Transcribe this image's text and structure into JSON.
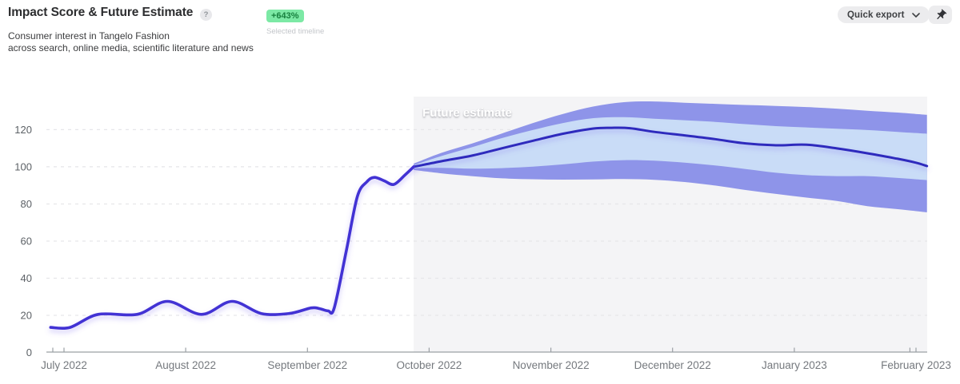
{
  "header": {
    "title": "Impact Score & Future Estimate",
    "help": "?",
    "subtitle_line1": "Consumer interest in Tangelo Fashion",
    "subtitle_line2": "across search, online media, scientific literature and news",
    "badge": "+643%",
    "badge_caption": "Selected timeline",
    "quick_export_label": "Quick export"
  },
  "colors": {
    "line_actual": "#4233d4",
    "line_forecast": "#2e29bd",
    "band_inner": "#c9dcf7",
    "band_outer": "#8e94e9",
    "region_bg": "#f4f4f6",
    "grid": "#e6e6e9",
    "axis": "#9ba0a5",
    "y_label": "#5c6166",
    "x_label": "#75797e",
    "future_label": "#ffffff",
    "badge_bg": "#7ce9a5",
    "badge_text": "#17803e"
  },
  "chart_data": {
    "type": "line",
    "title": "Impact Score & Future Estimate",
    "x_unit": "months since July 2022 tick",
    "x_tick_labels": [
      "July 2022",
      "August 2022",
      "September 2022",
      "October 2022",
      "November 2022",
      "December 2022",
      "January 2023",
      "February 2023"
    ],
    "x_tick_months": [
      0,
      1,
      2,
      3,
      4,
      5,
      6,
      7
    ],
    "extra_tick_months": [
      -0.092,
      6.95
    ],
    "y_ticks": [
      0,
      20,
      40,
      60,
      80,
      100,
      120
    ],
    "ylim": [
      0,
      137.6
    ],
    "grid": "dashed-horizontal",
    "legend": "none",
    "future_region": {
      "label": "Future estimate",
      "start": 2.873,
      "end": 7.09
    },
    "series": [
      {
        "name": "Impact score (actual)",
        "type": "line",
        "points": [
          [
            -0.11,
            13.5
          ],
          [
            0.05,
            13.5
          ],
          [
            0.28,
            20.5
          ],
          [
            0.6,
            20.5
          ],
          [
            0.85,
            27.5
          ],
          [
            1.13,
            20.5
          ],
          [
            1.38,
            27.5
          ],
          [
            1.62,
            21
          ],
          [
            1.85,
            21
          ],
          [
            2.03,
            24
          ],
          [
            2.1,
            23.6
          ],
          [
            2.17,
            22.4
          ],
          [
            2.22,
            24
          ],
          [
            2.32,
            55
          ],
          [
            2.41,
            84
          ],
          [
            2.49,
            92
          ],
          [
            2.55,
            94.3
          ],
          [
            2.63,
            92.5
          ],
          [
            2.71,
            90.5
          ],
          [
            2.8,
            95.5
          ],
          [
            2.873,
            100
          ]
        ]
      },
      {
        "name": "Future estimate (median)",
        "type": "line",
        "points": [
          [
            2.873,
            100
          ],
          [
            3.1,
            103
          ],
          [
            3.35,
            106
          ],
          [
            3.6,
            110
          ],
          [
            3.85,
            114
          ],
          [
            4.1,
            117.8
          ],
          [
            4.35,
            120.6
          ],
          [
            4.5,
            121
          ],
          [
            4.65,
            120.8
          ],
          [
            4.85,
            118.8
          ],
          [
            5.1,
            116.9
          ],
          [
            5.35,
            114.9
          ],
          [
            5.6,
            112.6
          ],
          [
            5.85,
            111.6
          ],
          [
            6.1,
            111.9
          ],
          [
            6.35,
            109.9
          ],
          [
            6.6,
            107.3
          ],
          [
            6.85,
            104.3
          ],
          [
            7.0,
            102.2
          ],
          [
            7.09,
            100.4
          ]
        ]
      },
      {
        "name": "Future estimate (inner confidence band)",
        "type": "band",
        "points": [
          [
            2.873,
            99.2,
            100.8
          ],
          [
            3.1,
            99.4,
            105.8
          ],
          [
            3.35,
            99.0,
            110.5
          ],
          [
            3.6,
            99.3,
            115.5
          ],
          [
            3.85,
            100.1,
            119.8
          ],
          [
            4.1,
            101.3,
            123.6
          ],
          [
            4.35,
            102.8,
            126.2
          ],
          [
            4.6,
            103.6,
            126.7
          ],
          [
            4.85,
            103.3,
            125.9
          ],
          [
            5.1,
            102.2,
            125.1
          ],
          [
            5.35,
            100.7,
            124.2
          ],
          [
            5.6,
            98.8,
            123.0
          ],
          [
            5.85,
            96.8,
            121.9
          ],
          [
            6.1,
            95.5,
            121.2
          ],
          [
            6.35,
            95.0,
            120.5
          ],
          [
            6.6,
            95.0,
            119.8
          ],
          [
            6.85,
            94.0,
            118.8
          ],
          [
            7.09,
            92.8,
            117.8
          ]
        ]
      },
      {
        "name": "Future estimate (outer confidence band)",
        "type": "band",
        "points": [
          [
            2.873,
            98.3,
            101.7
          ],
          [
            3.1,
            96.5,
            107.5
          ],
          [
            3.35,
            95.0,
            112.5
          ],
          [
            3.6,
            93.8,
            118.0
          ],
          [
            3.85,
            93.3,
            123.5
          ],
          [
            4.1,
            93.1,
            128.5
          ],
          [
            4.35,
            93.2,
            132.5
          ],
          [
            4.6,
            93.4,
            134.8
          ],
          [
            4.85,
            93.0,
            135.2
          ],
          [
            5.1,
            91.8,
            134.5
          ],
          [
            5.35,
            89.9,
            133.9
          ],
          [
            5.6,
            87.5,
            133.3
          ],
          [
            5.85,
            85.4,
            132.8
          ],
          [
            6.1,
            83.4,
            132.2
          ],
          [
            6.35,
            81.6,
            131.3
          ],
          [
            6.6,
            78.8,
            130.2
          ],
          [
            6.85,
            77.2,
            129.2
          ],
          [
            7.09,
            75.5,
            128.0
          ]
        ]
      }
    ]
  }
}
